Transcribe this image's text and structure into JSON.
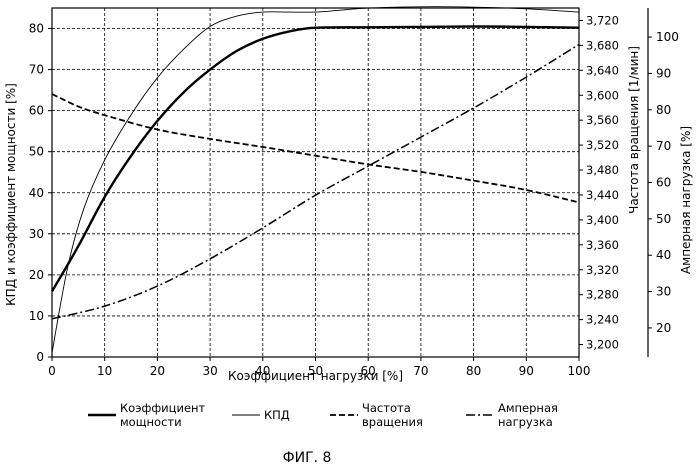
{
  "chart_data": {
    "type": "line",
    "title": "",
    "caption": "ФИГ. 8",
    "xlabel": "Коэффициент нагрузки [%]",
    "xlim": [
      0,
      100
    ],
    "xticks": [
      "0",
      "10",
      "20",
      "30",
      "40",
      "50",
      "60",
      "70",
      "80",
      "90",
      "100"
    ],
    "axes": {
      "left": {
        "label": "КПД и коэффициент мощности [%]",
        "lim": [
          0,
          85
        ],
        "ticks": [
          "0",
          "10",
          "20",
          "30",
          "40",
          "50",
          "60",
          "70",
          "80"
        ]
      },
      "right1": {
        "label": "Частота вращения [1/мин]",
        "lim": [
          3180,
          3740
        ],
        "ticks": [
          "3,200",
          "3,240",
          "3,280",
          "3,320",
          "3,360",
          "3,400",
          "3,440",
          "3,480",
          "3,520",
          "3,560",
          "3,600",
          "3,640",
          "3,680",
          "3,720"
        ]
      },
      "right2": {
        "label": "Амперная нагрузка [%]",
        "lim": [
          12,
          108
        ],
        "ticks": [
          "20",
          "30",
          "40",
          "50",
          "60",
          "70",
          "80",
          "90",
          "100"
        ]
      }
    },
    "grid": true,
    "series": [
      {
        "name": "Коэффициент мощности",
        "axis": "left",
        "style": "solid-thick",
        "x": [
          0,
          5,
          10,
          15,
          20,
          25,
          30,
          35,
          40,
          45,
          50,
          60,
          70,
          80,
          90,
          100
        ],
        "y": [
          16,
          27,
          39,
          49,
          57.5,
          64.5,
          70,
          74.5,
          77.5,
          79.3,
          80.2,
          80.3,
          80.4,
          80.5,
          80.4,
          80.2
        ]
      },
      {
        "name": "КПД",
        "axis": "left",
        "style": "solid-thin",
        "x": [
          0,
          3,
          6,
          10,
          15,
          20,
          25,
          30,
          35,
          40,
          45,
          50,
          55,
          60,
          70,
          80,
          90,
          100
        ],
        "y": [
          1,
          22,
          36,
          48,
          59,
          68,
          75,
          80.5,
          83,
          84,
          84,
          84,
          84.5,
          85,
          85.3,
          85.2,
          84.8,
          84
        ]
      },
      {
        "name": "Частота вращения",
        "axis": "right1",
        "style": "dashed",
        "x": [
          0,
          5,
          10,
          20,
          30,
          40,
          50,
          60,
          70,
          80,
          90,
          100
        ],
        "y": [
          3602,
          3582,
          3568,
          3545,
          3530,
          3517,
          3503,
          3489,
          3477,
          3463,
          3448,
          3428
        ]
      },
      {
        "name": "Амперная нагрузка",
        "axis": "right2",
        "style": "dash-dot",
        "x": [
          0,
          10,
          20,
          30,
          40,
          50,
          60,
          70,
          80,
          90,
          100
        ],
        "y": [
          22.5,
          26,
          31.5,
          39,
          47.5,
          56.5,
          64.5,
          72.5,
          80.5,
          89,
          98
        ]
      }
    ],
    "legend": {
      "placement": "bottom",
      "entries": [
        {
          "lines": [
            "Коэффициент",
            "мощности"
          ],
          "style": "solid-thick"
        },
        {
          "lines": [
            "КПД"
          ],
          "style": "solid-thin"
        },
        {
          "lines": [
            "Частота",
            "вращения"
          ],
          "style": "dashed"
        },
        {
          "lines": [
            "Амперная",
            "нагрузка"
          ],
          "style": "dash-dot"
        }
      ]
    }
  }
}
